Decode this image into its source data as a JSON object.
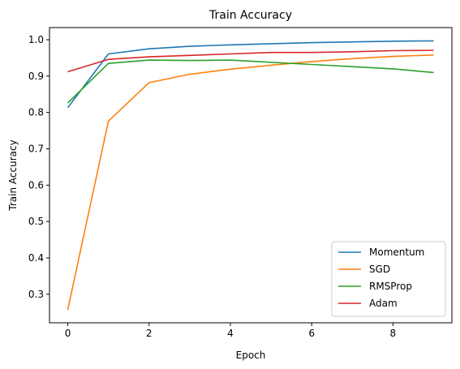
{
  "chart_data": {
    "type": "line",
    "title": "Train Accuracy",
    "xlabel": "Epoch",
    "ylabel": "Train Accuracy",
    "x": [
      0,
      1,
      2,
      3,
      4,
      5,
      6,
      7,
      8,
      9
    ],
    "xlim": [
      -0.45,
      9.45
    ],
    "ylim": [
      0.2215,
      1.0335
    ],
    "xticks": [
      0,
      2,
      4,
      6,
      8
    ],
    "yticks": [
      0.3,
      0.4,
      0.5,
      0.6,
      0.7,
      0.8,
      0.9,
      1.0
    ],
    "xtick_labels": [
      "0",
      "2",
      "4",
      "6",
      "8"
    ],
    "ytick_labels": [
      "0.3",
      "0.4",
      "0.5",
      "0.6",
      "0.7",
      "0.8",
      "0.9",
      "1.0"
    ],
    "grid": false,
    "legend_position": "bottom-right",
    "series": [
      {
        "name": " Momentum",
        "color": "#1f77b4",
        "values": [
          0.813,
          0.961,
          0.975,
          0.982,
          0.986,
          0.989,
          0.992,
          0.994,
          0.996,
          0.997
        ]
      },
      {
        "name": "SGD",
        "color": "#ff7f0e",
        "values": [
          0.257,
          0.776,
          0.882,
          0.905,
          0.919,
          0.93,
          0.94,
          0.948,
          0.954,
          0.958
        ]
      },
      {
        "name": "RMSProp",
        "color": "#2ca02c",
        "values": [
          0.826,
          0.935,
          0.944,
          0.943,
          0.944,
          0.938,
          0.932,
          0.926,
          0.92,
          0.91
        ]
      },
      {
        "name": "Adam",
        "color": "#d62728",
        "values": [
          0.912,
          0.946,
          0.953,
          0.957,
          0.961,
          0.965,
          0.965,
          0.967,
          0.97,
          0.971
        ]
      }
    ]
  }
}
